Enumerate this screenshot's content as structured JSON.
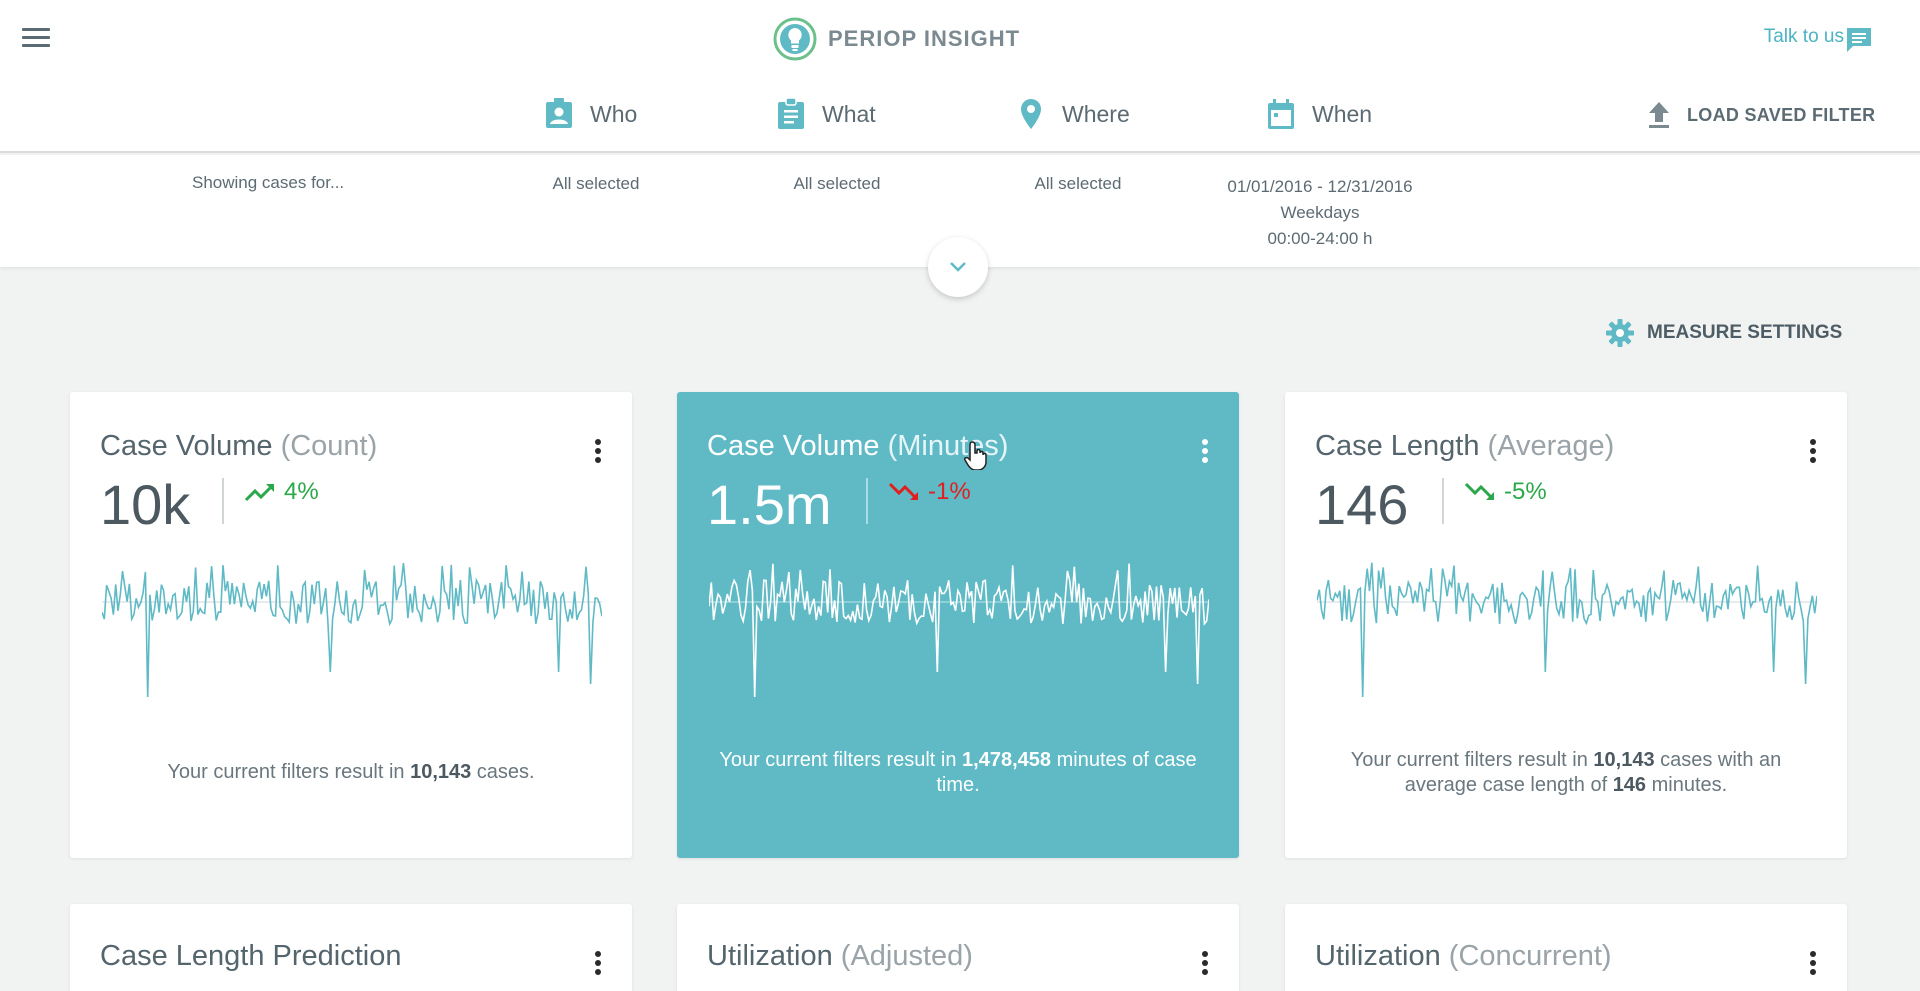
{
  "app": {
    "name": "PERIOP INSIGHT"
  },
  "header": {
    "talk_label": "Talk to us",
    "load_filter_label": "LOAD SAVED FILTER"
  },
  "filters": {
    "tabs": [
      {
        "label": "Who",
        "icon": "person-badge-icon"
      },
      {
        "label": "What",
        "icon": "clipboard-icon"
      },
      {
        "label": "Where",
        "icon": "location-pin-icon"
      },
      {
        "label": "When",
        "icon": "calendar-icon"
      }
    ],
    "showing_label": "Showing cases for...",
    "who_value": "All selected",
    "what_value": "All selected",
    "where_value": "All selected",
    "when_lines": [
      "01/01/2016 - 12/31/2016",
      "Weekdays",
      "00:00-24:00 h"
    ]
  },
  "measure_settings_label": "MEASURE SETTINGS",
  "colors": {
    "accent": "#5fbac6",
    "brand_green": "#6cc08b",
    "trend_up": "#2aa84a",
    "trend_down": "#e01f1f"
  },
  "cards": [
    {
      "title": "Case Volume",
      "subtitle": "(Count)",
      "value": "10k",
      "trend": "4%",
      "trend_dir": "up",
      "desc_pre": "Your current filters result in ",
      "desc_b1": "10,143",
      "desc_mid": " cases.",
      "desc_b2": "",
      "desc_post": ""
    },
    {
      "title": "Case Volume",
      "subtitle": "(Minutes)",
      "value": "1.5m",
      "trend": "-1%",
      "trend_dir": "down-bad",
      "desc_pre": "Your current filters result in ",
      "desc_b1": "1,478,458",
      "desc_mid": " minutes of case time.",
      "desc_b2": "",
      "desc_post": ""
    },
    {
      "title": "Case Length",
      "subtitle": "(Average)",
      "value": "146",
      "trend": "-5%",
      "trend_dir": "down-good",
      "desc_pre": "Your current filters result in ",
      "desc_b1": "10,143",
      "desc_mid": " cases with an average case length of ",
      "desc_b2": "146",
      "desc_post": " minutes."
    },
    {
      "title": "Case Length Prediction",
      "subtitle": ""
    },
    {
      "title": "Utilization",
      "subtitle": "(Adjusted)"
    },
    {
      "title": "Utilization",
      "subtitle": "(Concurrent)"
    }
  ]
}
